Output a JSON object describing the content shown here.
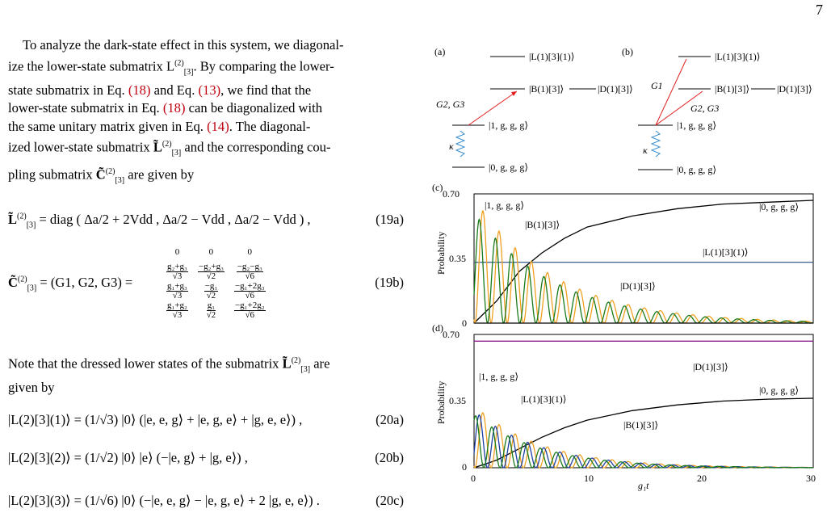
{
  "page_number": "7",
  "para1_l1": "To analyze the dark-state effect in this system, we diagonal-",
  "para1_l2": "ize the lower-state submatrix L",
  "para1_l2b": ". By comparing the lower-",
  "para1_l3a": "state submatrix in Eq. ",
  "ref18": "(18)",
  "para1_l3b": " and Eq. ",
  "ref13": "(13)",
  "para1_l3c": ", we find that the",
  "para1_l4a": "lower-state submatrix in Eq. ",
  "para1_l4b": " can be diagonalized with",
  "para1_l5a": "the same unitary matrix given in Eq. ",
  "ref14": "(14)",
  "para1_l5b": ".  The diagonal-",
  "para1_l6a": "ized lower-state submatrix ",
  "para1_l6b": " and the corresponding cou-",
  "para1_l7a": "pling submatrix ",
  "para1_l7b": " are given by",
  "eq19a": "= diag ( Δa/2 + 2Vdd ,  Δa/2 − Vdd ,  Δa/2 − Vdd ) ,",
  "eq19a_num": "(19a)",
  "eq19b_lhs": "= (G1, G2, G3) =",
  "eq19b_num": "(19b)",
  "para2_l1a": "Note that the dressed lower states of the submatrix ",
  "para2_l1b": " are",
  "para2_l2": "given by",
  "eq20a": "|L(2)[3](1)⟩ = (1/√3) |0⟩ (|e, e, g⟩ + |e, g, e⟩ + |g, e, e⟩) ,",
  "eq20a_num": "(20a)",
  "eq20b": "|L(2)[3](2)⟩ = (1/√2) |0⟩ |e⟩ (−|e, g⟩ + |g, e⟩) ,",
  "eq20b_num": "(20b)",
  "eq20c": "|L(2)[3](3)⟩ = (1/√6) |0⟩ (−|e, e, g⟩ − |e, g, e⟩ + 2 |g, e, e⟩) .",
  "eq20c_num": "(20c)",
  "colors": {
    "black": "#000000",
    "orange": "#f0a020",
    "green": "#1a7a1a",
    "blue": "#1f3fa0",
    "steel": "#3a5f8f",
    "purple": "#8b1a8b",
    "red": "#e02020",
    "arrowblue": "#3a8fd0"
  },
  "diagram_a": {
    "label": "(a)",
    "L": "|L(1)[3](1)⟩",
    "B": "|B(1)[3]⟩",
    "D": "|D(1)[3]⟩",
    "one": "|1, g, g, g⟩",
    "zero": "|0, g, g, g⟩",
    "G": "G2, G3",
    "kappa": "κ"
  },
  "diagram_b": {
    "label": "(b)",
    "L": "|L(1)[3](1)⟩",
    "B": "|B(1)[3]⟩",
    "D": "|D(1)[3]⟩",
    "one": "|1, g, g, g⟩",
    "zero": "|0, g, g, g⟩",
    "G1": "G1",
    "G23": "G2, G3",
    "kappa": "κ"
  },
  "chart_data": [
    {
      "panel": "(c)",
      "type": "line",
      "xlabel": "",
      "ylabel": "Probability",
      "xlim": [
        0,
        30
      ],
      "ylim": [
        0,
        0.7
      ],
      "yticks": [
        "0",
        "0.35",
        "0.70"
      ],
      "series": [
        {
          "name": "|0, g, g, g⟩",
          "color": "#000000",
          "points": [
            [
              0,
              0
            ],
            [
              2,
              0.12
            ],
            [
              4,
              0.28
            ],
            [
              6,
              0.38
            ],
            [
              8,
              0.46
            ],
            [
              10,
              0.52
            ],
            [
              14,
              0.58
            ],
            [
              18,
              0.62
            ],
            [
              22,
              0.645
            ],
            [
              26,
              0.655
            ],
            [
              30,
              0.665
            ]
          ]
        },
        {
          "name": "|L(1)[3](1)⟩",
          "color": "#3a5f8f",
          "constant": 0.33
        },
        {
          "name": "|1, g, g, g⟩",
          "color": "#f0a020",
          "decay": [
            0.68,
            0.14
          ]
        },
        {
          "name": "|B(1)[3]⟩",
          "color": "#1a7a1a",
          "decay": [
            0.6,
            0.14
          ]
        },
        {
          "name": "|D(1)[3]⟩",
          "color": "#000000",
          "constant": 0
        }
      ]
    },
    {
      "panel": "(d)",
      "type": "line",
      "xlabel": "g1t",
      "ylabel": "Probability",
      "xlim": [
        0,
        30
      ],
      "ylim": [
        0,
        0.7
      ],
      "xticks": [
        "0",
        "10",
        "20",
        "30"
      ],
      "yticks": [
        "0",
        "0.35",
        "0.70"
      ],
      "series": [
        {
          "name": "|D(1)[3]⟩",
          "color": "#8b1a8b",
          "constant": 0.665
        },
        {
          "name": "|0, g, g, g⟩",
          "color": "#000000",
          "points": [
            [
              0,
              0
            ],
            [
              2,
              0.04
            ],
            [
              4,
              0.1
            ],
            [
              6,
              0.16
            ],
            [
              8,
              0.21
            ],
            [
              10,
              0.25
            ],
            [
              14,
              0.3
            ],
            [
              18,
              0.33
            ],
            [
              22,
              0.35
            ],
            [
              26,
              0.36
            ],
            [
              30,
              0.365
            ]
          ]
        },
        {
          "name": "|1, g, g, g⟩",
          "color": "#f0a020",
          "decay": [
            0.33,
            0.17
          ]
        },
        {
          "name": "|L(1)[3](1)⟩",
          "color": "#1f3fa0",
          "decay": [
            0.3,
            0.17
          ]
        },
        {
          "name": "|B(1)[3]⟩",
          "color": "#1a7a1a",
          "decay": [
            0.28,
            0.17
          ]
        }
      ]
    }
  ]
}
